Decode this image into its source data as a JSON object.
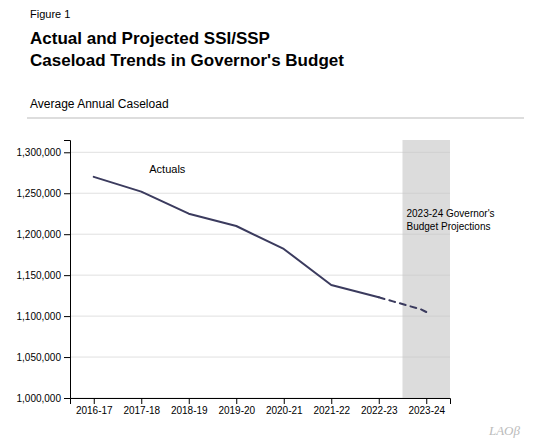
{
  "chart_data": {
    "type": "line",
    "title": "Actual and Projected SSI/SSP\nCaseload Trends in Governor's Budget",
    "subtitle": "Average Annual Caseload",
    "annotations": [
      "Figure 1",
      "Actuals",
      "2023-24 Governor's\nBudget Projections",
      "LAOβ"
    ],
    "series": [
      {
        "x": [
          0,
          1,
          2,
          3,
          4,
          5,
          6
        ],
        "values": [
          1270000,
          1252000,
          1225000,
          1210000,
          1182000,
          1138000,
          1123000
        ],
        "color": "#3b3b5e",
        "line_style": "solid"
      },
      {
        "x": [
          6,
          6.3,
          6.6,
          6.9,
          7.0
        ],
        "values": [
          1123000,
          1118000,
          1113000,
          1108000,
          1105000
        ],
        "color": "#3b3b5e",
        "line_style": "dashed"
      }
    ],
    "shade": {
      "x": [
        6.5,
        7.5
      ],
      "color": "#c4c4c4"
    },
    "xlim": [
      -0.5,
      7.5
    ],
    "xticks": [
      {
        "value": 0,
        "label": "2016-17"
      },
      {
        "value": 1,
        "label": "2017-18"
      },
      {
        "value": 2,
        "label": "2018-19"
      },
      {
        "value": 3,
        "label": "2019-20"
      },
      {
        "value": 4,
        "label": "2020-21"
      },
      {
        "value": 5,
        "label": "2021-22"
      },
      {
        "value": 6,
        "label": "2022-23"
      },
      {
        "value": 7,
        "label": "2023-24"
      }
    ],
    "ylim": [
      1000000,
      1315000
    ],
    "yticks": [
      {
        "value": 1000000,
        "label": "1,000,000"
      },
      {
        "value": 1050000,
        "label": "1,050,000"
      },
      {
        "value": 1100000,
        "label": "1,100,000"
      },
      {
        "value": 1150000,
        "label": "1,150,000"
      },
      {
        "value": 1200000,
        "label": "1,200,000"
      },
      {
        "value": 1250000,
        "label": "1,250,000"
      },
      {
        "value": 1300000,
        "label": "1,300,000"
      }
    ],
    "grid": true
  }
}
